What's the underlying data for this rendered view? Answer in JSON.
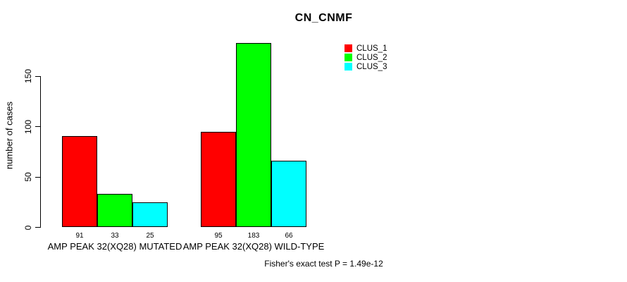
{
  "chart_data": {
    "type": "bar",
    "title": "CN_CNMF",
    "ylabel": "number of cases",
    "xlabel": "",
    "categories": [
      "AMP PEAK 32(XQ28) MUTATED",
      "AMP PEAK 32(XQ28) WILD-TYPE"
    ],
    "series": [
      {
        "name": "CLUS_1",
        "color": "#FF0000",
        "values": [
          91,
          95
        ]
      },
      {
        "name": "CLUS_2",
        "color": "#00FF00",
        "values": [
          33,
          183
        ]
      },
      {
        "name": "CLUS_3",
        "color": "#00FFFF",
        "values": [
          25,
          66
        ]
      }
    ],
    "yticks": [
      0,
      50,
      100,
      150
    ],
    "ylim": [
      0,
      187
    ],
    "grid": false,
    "value_labels_shown": true,
    "legend_position": "top-right",
    "legend_entries": [
      "CLUS_1",
      "CLUS_2",
      "CLUS_3"
    ],
    "bar_border_color": "#000000",
    "axis_color": "#000000",
    "background_color": "#FFFFFF",
    "footnote": "Fisher's exact test P = 1.49e-12"
  }
}
